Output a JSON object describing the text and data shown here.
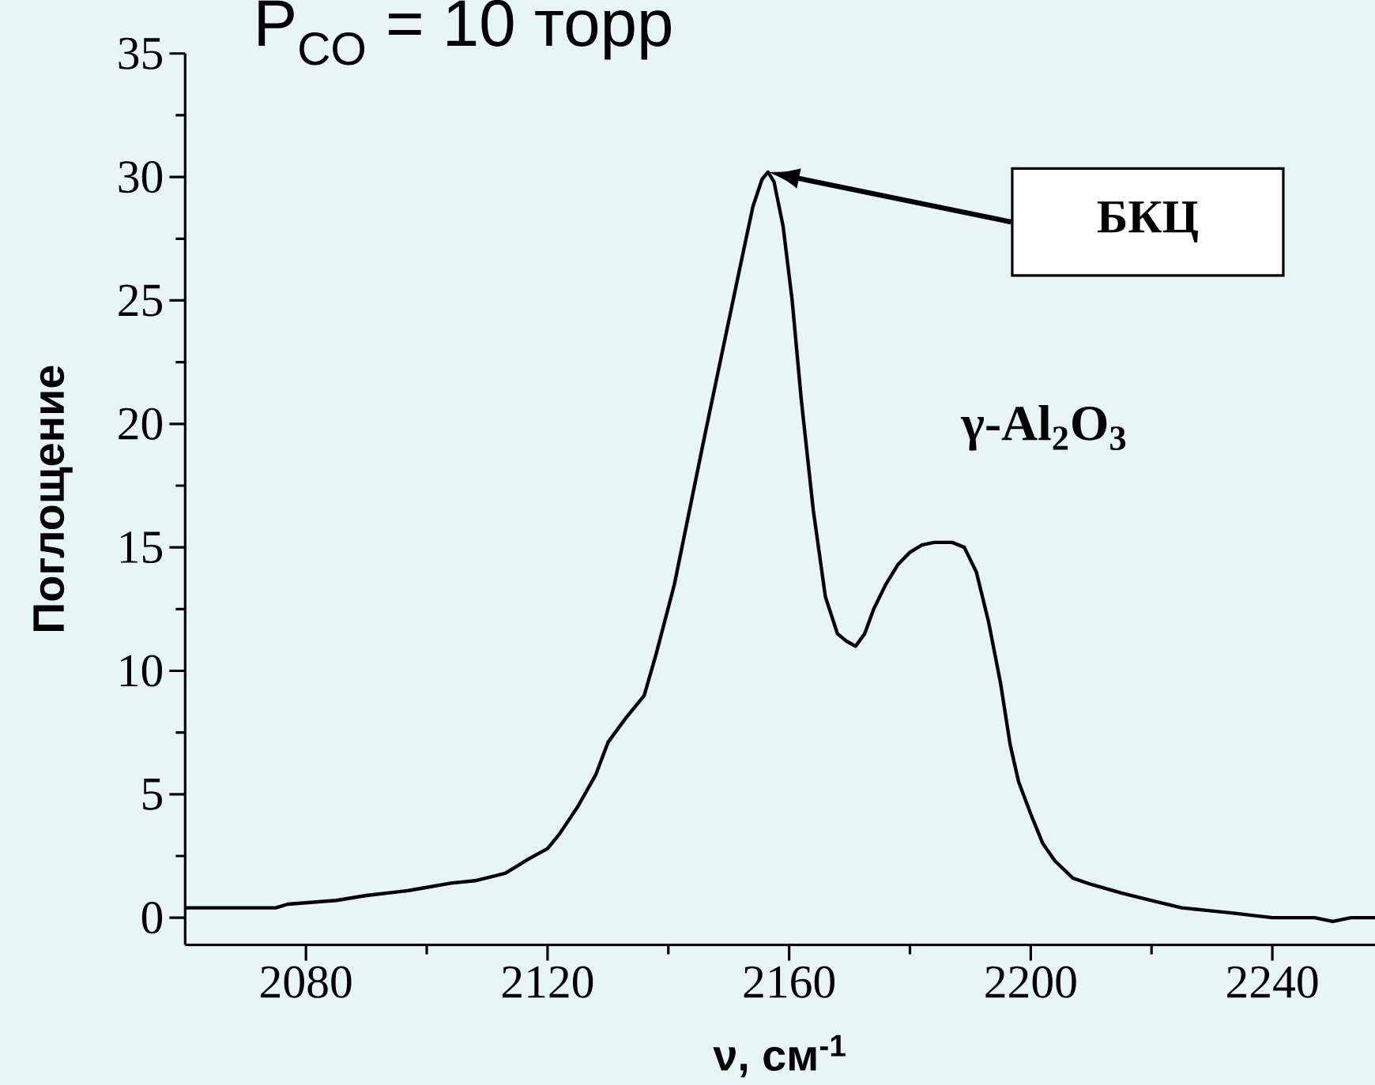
{
  "chart_data": {
    "type": "line",
    "title": "P$_{CO}$ = 10 торр",
    "xlabel": "ν, см$^{-1}$",
    "ylabel": "Поглощение",
    "annotations": [
      "БКЦ",
      "γ-Al$_{2}$O$_{3}$"
    ],
    "xlim": [
      2060,
      2257
    ],
    "ylim": [
      -1.1,
      35
    ],
    "xticks": [
      2080,
      2120,
      2160,
      2200,
      2240
    ],
    "yticks": [
      0,
      5,
      10,
      15,
      20,
      25,
      30,
      35
    ],
    "marker": "none",
    "line_style": "solid",
    "series": [
      {
        "color": "#000000",
        "x": [
          2060,
          2075,
          2077,
          2085,
          2090,
          2097,
          2104,
          2108,
          2113,
          2117,
          2120,
          2122,
          2125,
          2128,
          2130,
          2133,
          2136,
          2138,
          2141,
          2143.5,
          2146,
          2149,
          2152,
          2154,
          2155.5,
          2156.5,
          2157.5,
          2159,
          2160.5,
          2162,
          2164,
          2166,
          2168,
          2169.5,
          2171,
          2172.5,
          2174,
          2176,
          2178,
          2180,
          2182,
          2184,
          2187,
          2189,
          2191,
          2193,
          2195,
          2196.6,
          2198,
          2200,
          2202,
          2204,
          2207,
          2210,
          2215,
          2220,
          2225,
          2233,
          2240,
          2247,
          2250,
          2253,
          2257
        ],
        "values": [
          0.4,
          0.4,
          0.55,
          0.7,
          0.9,
          1.1,
          1.4,
          1.5,
          1.8,
          2.4,
          2.8,
          3.4,
          4.5,
          5.8,
          7.1,
          8.1,
          9.0,
          10.7,
          13.5,
          16.5,
          19.5,
          23.0,
          26.5,
          28.8,
          29.9,
          30.2,
          29.8,
          28.0,
          25.0,
          21.0,
          16.5,
          13.0,
          11.5,
          11.2,
          11.0,
          11.5,
          12.5,
          13.5,
          14.3,
          14.8,
          15.1,
          15.2,
          15.2,
          15.0,
          14.0,
          12.0,
          9.5,
          7.0,
          5.5,
          4.2,
          3.0,
          2.3,
          1.6,
          1.35,
          1.0,
          0.7,
          0.4,
          0.2,
          0.0,
          0.0,
          -0.15,
          0.0,
          0.0
        ]
      }
    ]
  }
}
